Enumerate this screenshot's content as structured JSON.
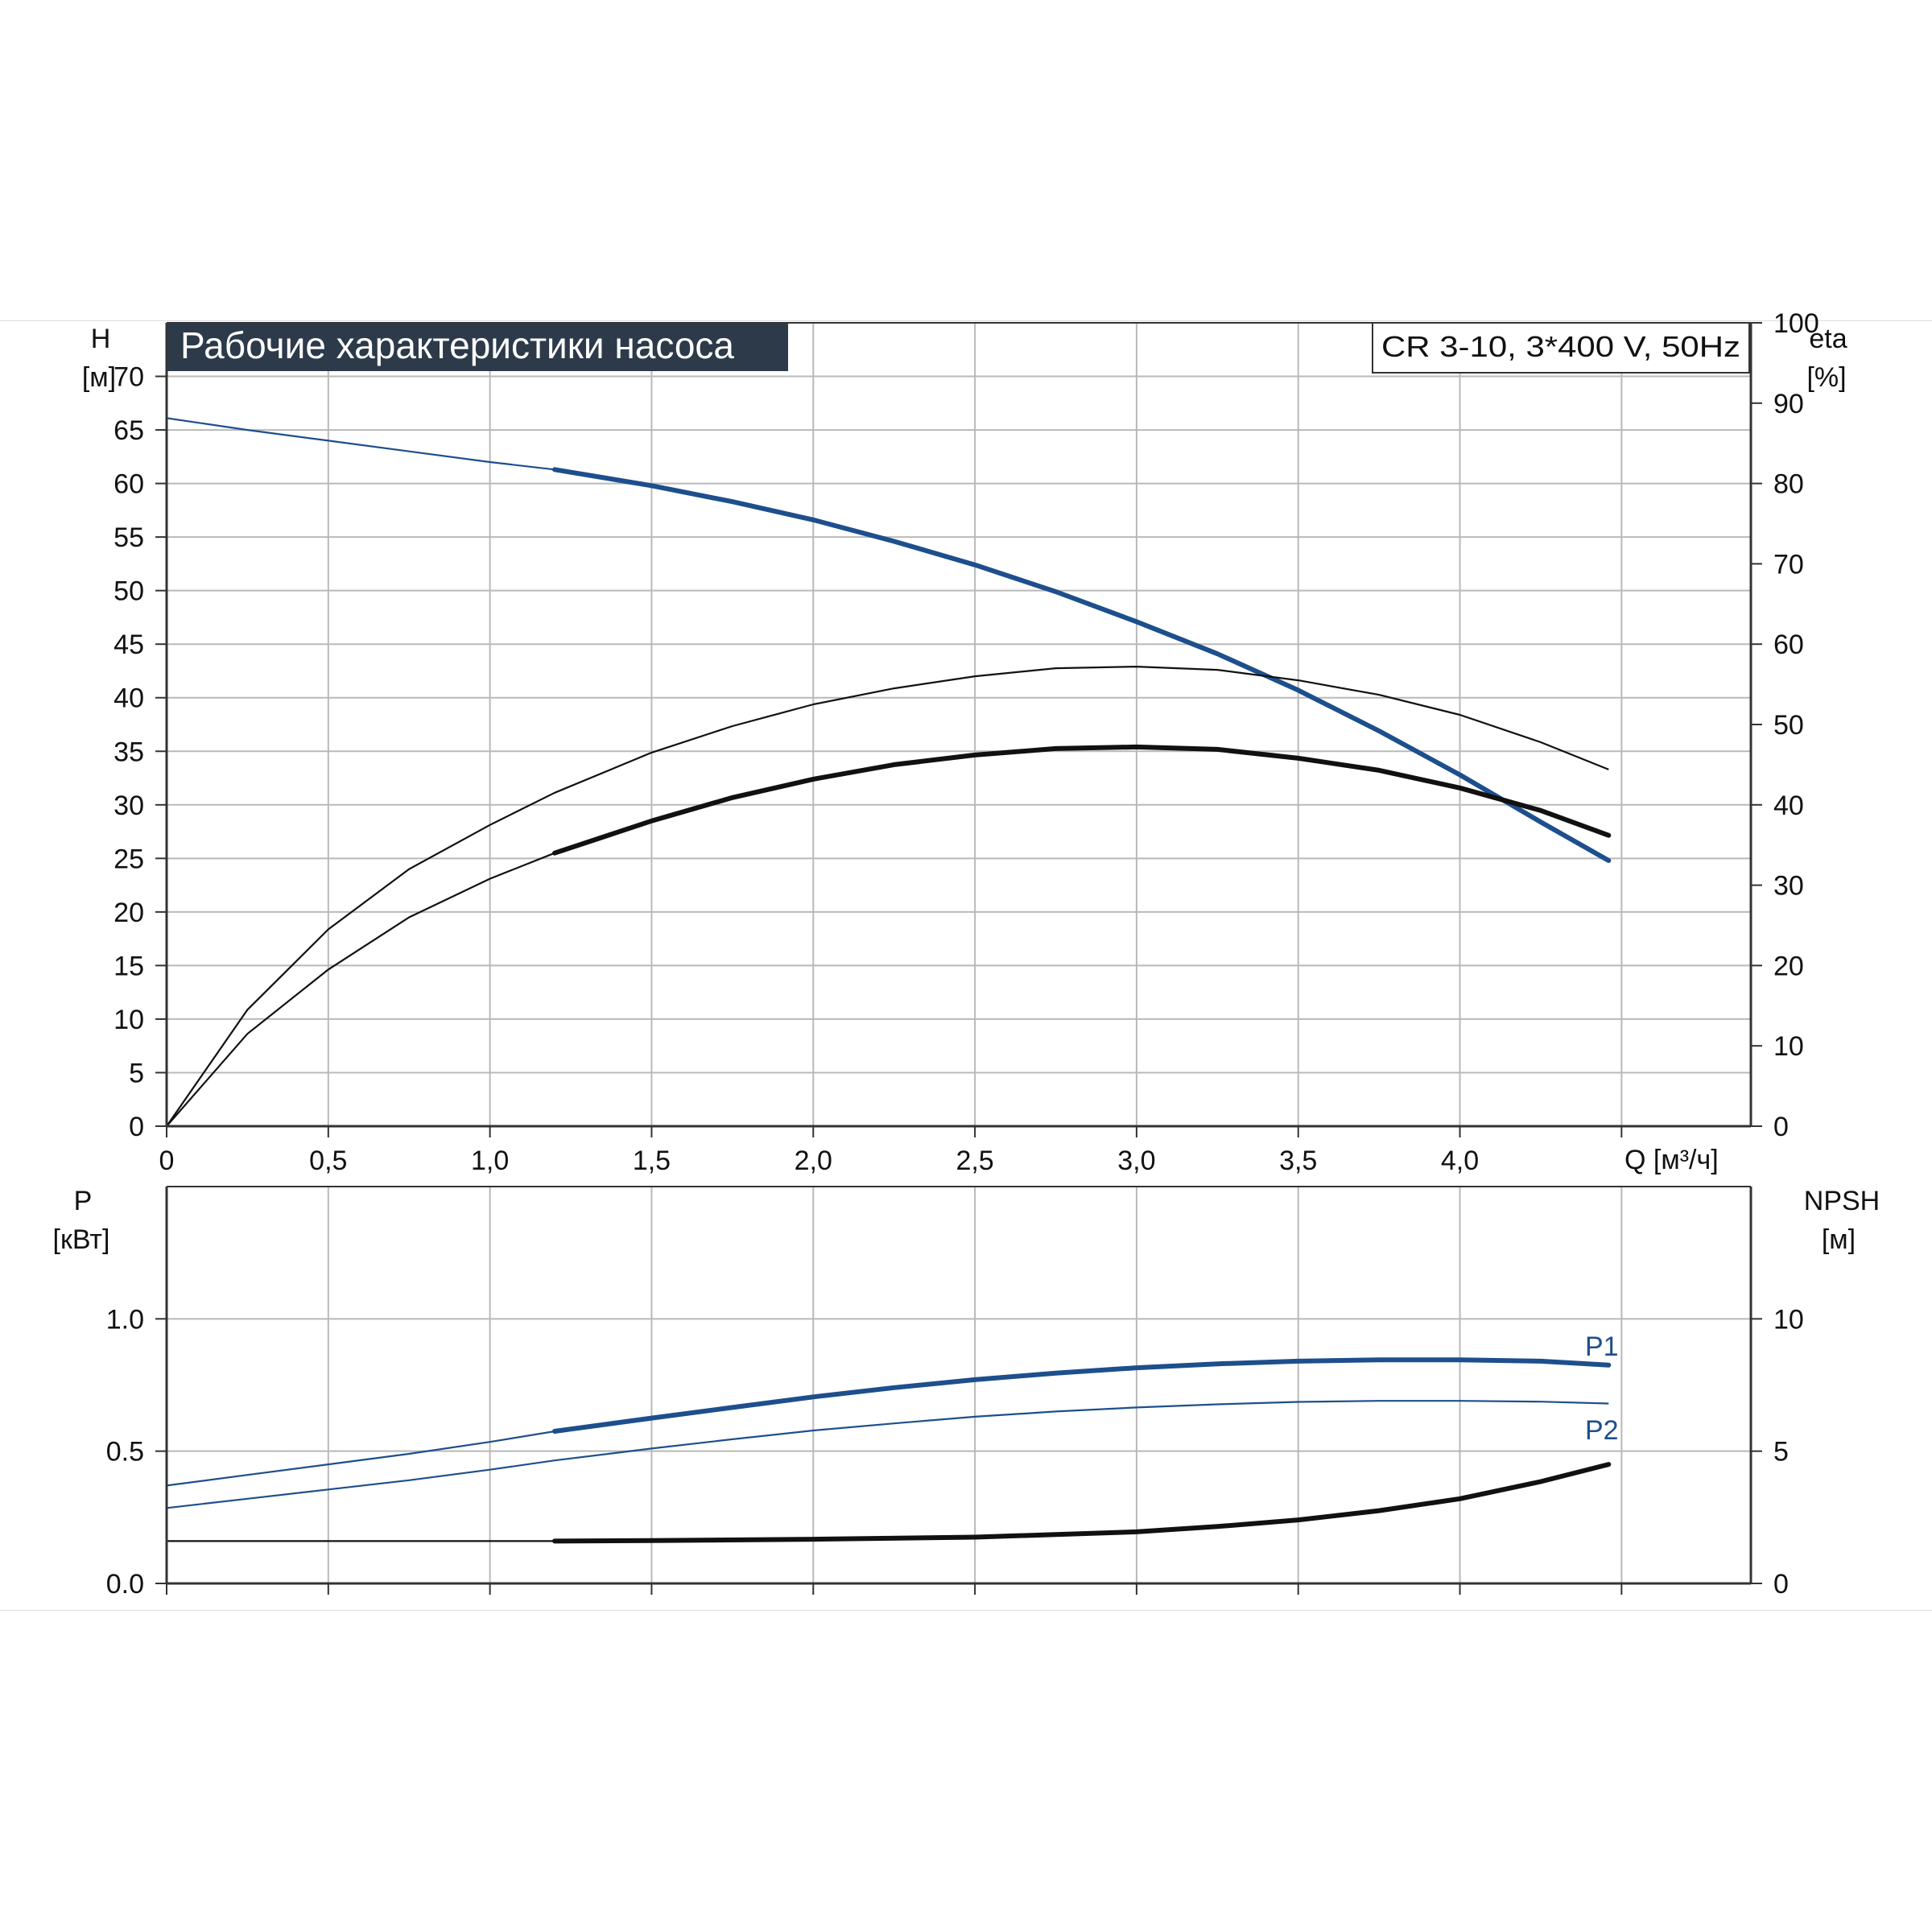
{
  "title_banner": "Рабочие характеристики насоса",
  "model_box": "CR 3-10, 3*400 V, 50Hz",
  "colors": {
    "banner_bg": "#2c3a4a",
    "banner_text": "#ffffff",
    "blue_curve": "#1d4f8c",
    "black_curve": "#111111",
    "grid": "#b9b9b9",
    "axis": "#333333"
  },
  "chart_data": [
    {
      "type": "line",
      "x_label": "Q [м³/ч]",
      "x_ticks": [
        "0",
        "0,5",
        "1,0",
        "1,5",
        "2,0",
        "2,5",
        "3,0",
        "3,5",
        "4,0"
      ],
      "xlim": [
        0,
        4.9
      ],
      "left_axis": {
        "label_line1": "H",
        "label_line2": "[м]",
        "ylim": [
          0,
          75
        ],
        "ticks": [
          0,
          5,
          10,
          15,
          20,
          25,
          30,
          35,
          40,
          45,
          50,
          55,
          60,
          65,
          70
        ]
      },
      "right_axis": {
        "label_line1": "eta",
        "label_line2": "[%]",
        "ylim": [
          0,
          100
        ],
        "ticks": [
          0,
          10,
          20,
          30,
          40,
          50,
          60,
          70,
          80,
          90,
          100
        ]
      },
      "grid": true,
      "series": [
        {
          "axis": "left",
          "color": "blue",
          "x": [
            0,
            0.25,
            0.5,
            0.75,
            1.0,
            1.2,
            1.5,
            1.75,
            2.0,
            2.25,
            2.5,
            2.75,
            3.0,
            3.25,
            3.5,
            3.75,
            4.0,
            4.25,
            4.46
          ],
          "y": [
            66.1,
            65.0,
            64.0,
            63.0,
            62.0,
            61.3,
            59.8,
            58.3,
            56.6,
            54.6,
            52.4,
            49.9,
            47.1,
            44.1,
            40.7,
            36.9,
            32.8,
            28.4,
            24.8
          ],
          "operating_from": 1.2
        },
        {
          "axis": "right",
          "color": "black",
          "x": [
            0,
            0.25,
            0.5,
            0.75,
            1.0,
            1.2,
            1.5,
            1.75,
            2.0,
            2.25,
            2.5,
            2.75,
            3.0,
            3.25,
            3.5,
            3.75,
            4.0,
            4.25,
            4.46
          ],
          "y": [
            0,
            14.5,
            24.5,
            32.0,
            37.5,
            41.5,
            46.5,
            49.8,
            52.5,
            54.5,
            56.0,
            57.0,
            57.2,
            56.8,
            55.5,
            53.7,
            51.2,
            47.8,
            44.4
          ]
        },
        {
          "axis": "right",
          "color": "black",
          "x": [
            0,
            0.25,
            0.5,
            0.75,
            1.0,
            1.2,
            1.5,
            1.75,
            2.0,
            2.25,
            2.5,
            2.75,
            3.0,
            3.25,
            3.5,
            3.75,
            4.0,
            4.25,
            4.46
          ],
          "y": [
            0,
            11.5,
            19.5,
            26.0,
            30.8,
            34.0,
            38.0,
            40.9,
            43.2,
            45.0,
            46.2,
            47.0,
            47.2,
            46.9,
            45.8,
            44.3,
            42.1,
            39.3,
            36.2
          ],
          "operating_from": 1.2
        }
      ]
    },
    {
      "type": "line",
      "x_label": "",
      "x_ticks": [],
      "xlim": [
        0,
        4.9
      ],
      "left_axis": {
        "label_line1": "P",
        "label_line2": "[кВт]",
        "ylim": [
          0,
          1.5
        ],
        "ticks": [
          "0.0",
          "0.5",
          "1.0"
        ]
      },
      "right_axis": {
        "label_line1": "NPSH",
        "label_line2": "[м]",
        "ylim": [
          0,
          15
        ],
        "ticks": [
          0,
          5,
          10
        ]
      },
      "grid": true,
      "series": [
        {
          "name": "P1",
          "axis": "left",
          "color": "blue",
          "x": [
            0,
            0.25,
            0.5,
            0.75,
            1.0,
            1.2,
            1.5,
            1.75,
            2.0,
            2.25,
            2.5,
            2.75,
            3.0,
            3.25,
            3.5,
            3.75,
            4.0,
            4.25,
            4.46
          ],
          "y": [
            0.37,
            0.41,
            0.45,
            0.49,
            0.535,
            0.575,
            0.625,
            0.665,
            0.705,
            0.74,
            0.77,
            0.795,
            0.815,
            0.83,
            0.84,
            0.845,
            0.845,
            0.84,
            0.825
          ],
          "operating_from": 1.2
        },
        {
          "name": "P2",
          "axis": "left",
          "color": "blue",
          "x": [
            0,
            0.25,
            0.5,
            0.75,
            1.0,
            1.2,
            1.5,
            1.75,
            2.0,
            2.25,
            2.5,
            2.75,
            3.0,
            3.25,
            3.5,
            3.75,
            4.0,
            4.25,
            4.46
          ],
          "y": [
            0.285,
            0.32,
            0.355,
            0.39,
            0.43,
            0.465,
            0.51,
            0.545,
            0.578,
            0.605,
            0.63,
            0.65,
            0.665,
            0.677,
            0.686,
            0.69,
            0.69,
            0.687,
            0.68
          ]
        },
        {
          "axis": "right",
          "color": "black",
          "x": [
            0,
            0.5,
            1.0,
            1.2,
            1.5,
            2.0,
            2.5,
            3.0,
            3.25,
            3.5,
            3.75,
            4.0,
            4.25,
            4.46
          ],
          "y": [
            1.6,
            1.6,
            1.6,
            1.6,
            1.62,
            1.67,
            1.75,
            1.95,
            2.15,
            2.4,
            2.75,
            3.2,
            3.85,
            4.5
          ],
          "operating_from": 1.2
        }
      ]
    }
  ]
}
